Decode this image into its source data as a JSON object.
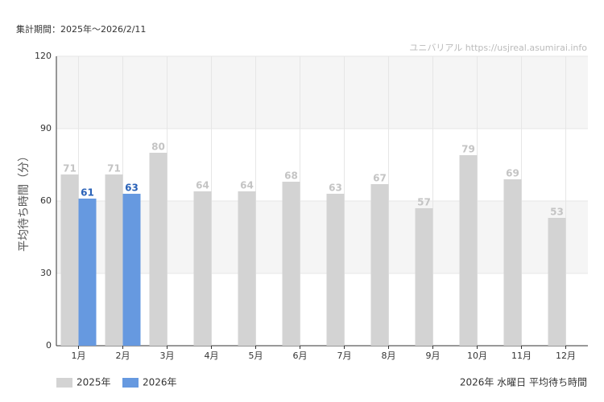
{
  "chart_data": {
    "type": "bar",
    "period": "集計期間：2025年～2026/2/11",
    "watermark": "ユニバリアル  https://usjreal.asumirai.info",
    "y_label": "平均待ち時間（分）",
    "caption": "2026年 水曜日 平均待ち時間",
    "categories": [
      "1月",
      "2月",
      "3月",
      "4月",
      "5月",
      "6月",
      "7月",
      "8月",
      "9月",
      "10月",
      "11月",
      "12月"
    ],
    "series": [
      {
        "name": "2025年",
        "color": "#d3d3d3",
        "values": [
          71,
          71,
          80,
          64,
          64,
          68,
          63,
          67,
          57,
          79,
          69,
          53
        ]
      },
      {
        "name": "2026年",
        "color": "#6699e0",
        "values": [
          61,
          63,
          null,
          null,
          null,
          null,
          null,
          null,
          null,
          null,
          null,
          null
        ]
      }
    ],
    "ylim": [
      0,
      120
    ],
    "yticks": [
      0,
      30,
      60,
      90,
      120
    ],
    "grid": true,
    "legend": "bottom-left"
  }
}
